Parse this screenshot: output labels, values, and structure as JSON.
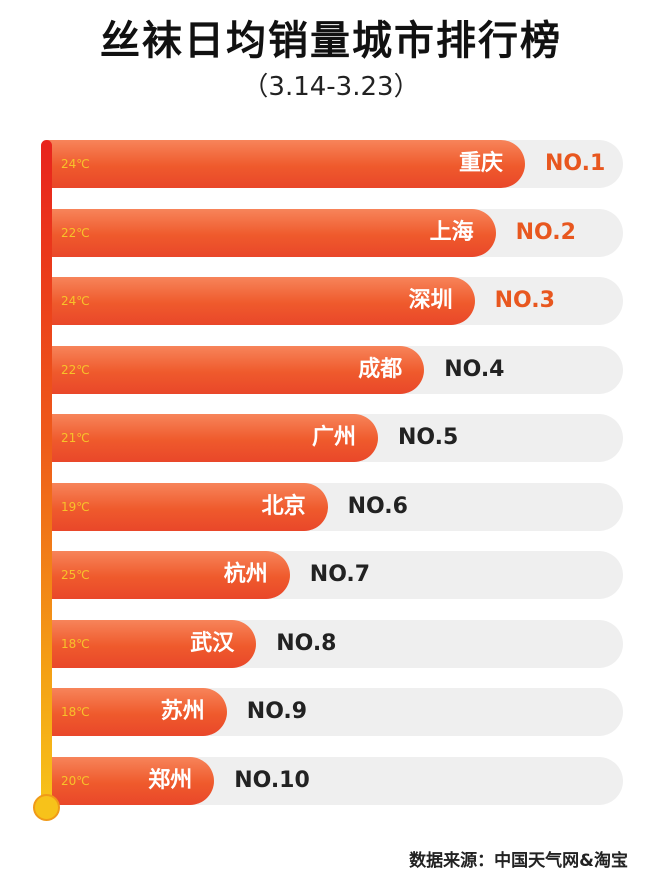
{
  "title": "丝袜日均销量城市排行榜",
  "subtitle": "（3.14-3.23）",
  "source": "数据来源：中国天气网&淘宝",
  "colors": {
    "bar": "#ef5a2c",
    "track": "#efefef",
    "rank_top": "#e8571f",
    "temp_text": "#f7c22a"
  },
  "chart_data": {
    "type": "bar",
    "orientation": "horizontal",
    "title": "丝袜日均销量城市排行榜",
    "subtitle": "（3.14-3.23）",
    "xlabel": "",
    "ylabel": "",
    "grid": false,
    "categories": [
      "重庆",
      "上海",
      "深圳",
      "成都",
      "广州",
      "北京",
      "杭州",
      "武汉",
      "苏州",
      "郑州"
    ],
    "ranks": [
      "NO.1",
      "NO.2",
      "NO.3",
      "NO.4",
      "NO.5",
      "NO.6",
      "NO.7",
      "NO.8",
      "NO.9",
      "NO.10"
    ],
    "temperatures": [
      "24℃",
      "22℃",
      "24℃",
      "22℃",
      "21℃",
      "19℃",
      "25℃",
      "18℃",
      "18℃",
      "20℃"
    ],
    "values": [
      10,
      9.3,
      8.8,
      7.6,
      6.5,
      5.3,
      4.4,
      3.6,
      2.9,
      2.6
    ],
    "xlim": [
      0,
      10
    ]
  }
}
